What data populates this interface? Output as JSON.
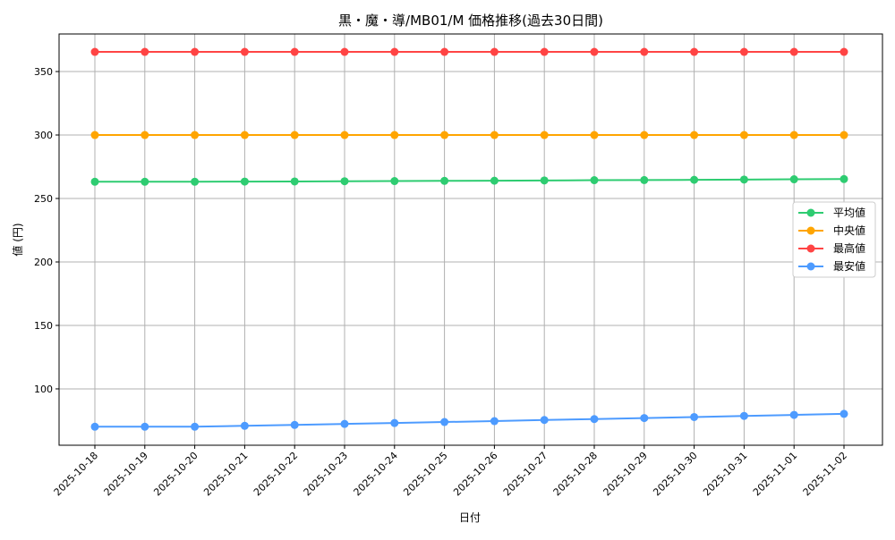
{
  "chart_data": {
    "type": "line",
    "title": "黒・魔・導/MB01/M 価格推移(過去30日間)",
    "xlabel": "日付",
    "ylabel": "値 (円)",
    "x": [
      "2025-10-18",
      "2025-10-19",
      "2025-10-20",
      "2025-10-21",
      "2025-10-22",
      "2025-10-23",
      "2025-10-24",
      "2025-10-25",
      "2025-10-26",
      "2025-10-27",
      "2025-10-28",
      "2025-10-29",
      "2025-10-30",
      "2025-10-31",
      "2025-11-01",
      "2025-11-02"
    ],
    "ylim": [
      55.6,
      379.6
    ],
    "yticks": [
      100,
      150,
      200,
      250,
      300,
      350
    ],
    "grid": true,
    "legend": "center-right",
    "series": [
      {
        "name": "平均値",
        "color": "#2ecc71",
        "values": [
          263.2,
          263.2,
          263.2,
          263.3,
          263.4,
          263.6,
          263.7,
          263.9,
          264.0,
          264.2,
          264.4,
          264.5,
          264.7,
          264.9,
          265.1,
          265.3
        ]
      },
      {
        "name": "中央値",
        "color": "#ffa500",
        "values": [
          300,
          300,
          300,
          300,
          300,
          300,
          300,
          300,
          300,
          300,
          300,
          300,
          300,
          300,
          300,
          300
        ]
      },
      {
        "name": "最高値",
        "color": "#ff4444",
        "values": [
          365.5,
          365.5,
          365.5,
          365.5,
          365.5,
          365.5,
          365.5,
          365.5,
          365.5,
          365.5,
          365.5,
          365.5,
          365.5,
          365.5,
          365.5,
          365.5
        ]
      },
      {
        "name": "最安値",
        "color": "#4d9bff",
        "values": [
          70.2,
          70.2,
          70.2,
          70.9,
          71.6,
          72.4,
          73.1,
          73.9,
          74.6,
          75.5,
          76.2,
          77.0,
          77.8,
          78.7,
          79.5,
          80.3
        ]
      }
    ]
  }
}
